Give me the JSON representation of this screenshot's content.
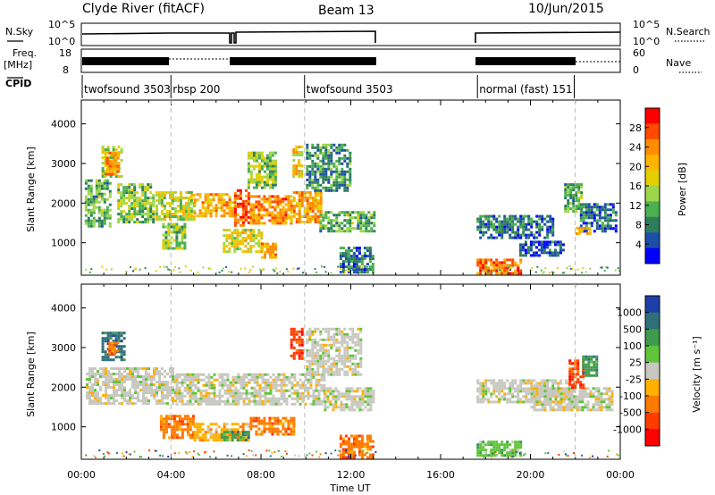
{
  "header": {
    "station": "Clyde River (fitACF)",
    "beam": "Beam 13",
    "date": "10/Jun/2015"
  },
  "strips": {
    "nsky_label": "N.Sky",
    "nsky_ticks": [
      "10^5",
      "10^0"
    ],
    "nsearch_label": "N.Search",
    "nsearch_ticks": [
      "10^5",
      "10^0"
    ],
    "freq_label_line1": "Freq.",
    "freq_label_line2": "[MHz]",
    "freq_ticks": [
      "18",
      "8"
    ],
    "nave_label": "Nave",
    "nave_ticks": [
      "60",
      "0"
    ],
    "cpid_label": "CPID"
  },
  "chart_data": [
    {
      "type": "heatmap",
      "name": "power-panel",
      "title": "",
      "xlabel": "",
      "ylabel": "Slant Range [km]",
      "xlim": [
        0,
        24
      ],
      "ylim": [
        180,
        4600
      ],
      "y_ticks": [
        "1000",
        "2000",
        "3000",
        "4000"
      ],
      "colorbar": {
        "label": "Power [dB]",
        "ticks": [
          "28",
          "24",
          "20",
          "16",
          "12",
          "8",
          "4"
        ],
        "colors": [
          "#ff0000",
          "#ff4a00",
          "#ff8c00",
          "#ffb400",
          "#e3cf00",
          "#9ed54a",
          "#4caf50",
          "#2e7d5b",
          "#1c4fa8",
          "#0000ff"
        ]
      },
      "patches": [
        {
          "t0": 0.15,
          "t1": 1.3,
          "r0": 1400,
          "r1": 2600,
          "level": 12
        },
        {
          "t0": 0.9,
          "t1": 1.8,
          "r0": 2650,
          "r1": 3450,
          "level": 16
        },
        {
          "t0": 1.1,
          "t1": 1.6,
          "r0": 2750,
          "r1": 3300,
          "level": 24
        },
        {
          "t0": 1.6,
          "t1": 3.2,
          "r0": 1550,
          "r1": 2500,
          "level": 14
        },
        {
          "t0": 3.3,
          "t1": 5.0,
          "r0": 1600,
          "r1": 2300,
          "level": 16
        },
        {
          "t0": 3.6,
          "t1": 4.6,
          "r0": 850,
          "r1": 1500,
          "level": 14
        },
        {
          "t0": 5.0,
          "t1": 6.8,
          "r0": 1650,
          "r1": 2250,
          "level": 22
        },
        {
          "t0": 6.8,
          "t1": 7.5,
          "r0": 1450,
          "r1": 2350,
          "level": 26
        },
        {
          "t0": 6.3,
          "t1": 8.0,
          "r0": 800,
          "r1": 1350,
          "level": 18
        },
        {
          "t0": 7.5,
          "t1": 9.3,
          "r0": 1500,
          "r1": 2200,
          "level": 24
        },
        {
          "t0": 7.4,
          "t1": 8.6,
          "r0": 2400,
          "r1": 3300,
          "level": 14
        },
        {
          "t0": 8.0,
          "t1": 8.6,
          "r0": 650,
          "r1": 1000,
          "level": 22
        },
        {
          "t0": 9.3,
          "t1": 10.7,
          "r0": 1550,
          "r1": 2300,
          "level": 22
        },
        {
          "t0": 9.4,
          "t1": 9.8,
          "r0": 2650,
          "r1": 3450,
          "level": 20
        },
        {
          "t0": 10.0,
          "t1": 12.0,
          "r0": 2300,
          "r1": 3500,
          "level": 10
        },
        {
          "t0": 10.6,
          "t1": 13.0,
          "r0": 1300,
          "r1": 1800,
          "level": 12
        },
        {
          "t0": 11.5,
          "t1": 13.0,
          "r0": 250,
          "r1": 900,
          "level": 8
        },
        {
          "t0": 17.6,
          "t1": 19.6,
          "r0": 250,
          "r1": 600,
          "level": 26
        },
        {
          "t0": 17.6,
          "t1": 21.0,
          "r0": 1100,
          "r1": 1700,
          "level": 8
        },
        {
          "t0": 19.5,
          "t1": 21.5,
          "r0": 700,
          "r1": 1050,
          "level": 6
        },
        {
          "t0": 21.5,
          "t1": 22.3,
          "r0": 1800,
          "r1": 2500,
          "level": 12
        },
        {
          "t0": 22.2,
          "t1": 23.8,
          "r0": 1300,
          "r1": 2000,
          "level": 8
        },
        {
          "t0": 22.0,
          "t1": 22.6,
          "r0": 1200,
          "r1": 1400,
          "level": 20
        }
      ]
    },
    {
      "type": "heatmap",
      "name": "velocity-panel",
      "title": "",
      "xlabel": "Time UT",
      "ylabel": "Slant Range [km]",
      "xlim": [
        0,
        24
      ],
      "ylim": [
        180,
        4600
      ],
      "x_ticks": [
        "00:00",
        "04:00",
        "08:00",
        "12:00",
        "16:00",
        "20:00",
        "00:00"
      ],
      "y_ticks": [
        "1000",
        "2000",
        "3000",
        "4000"
      ],
      "colorbar": {
        "label": "Velocity [m s⁻¹]",
        "ticks": [
          "1000",
          "500",
          "100",
          "25",
          "-25",
          "-100",
          "-500",
          "-1000"
        ],
        "colors": [
          "#1c3fa8",
          "#2f6f7a",
          "#3f9a4e",
          "#5fc43a",
          "#c8c8c0",
          "#ffb000",
          "#ff7a00",
          "#ff3c00",
          "#ff0000"
        ]
      },
      "patches": [
        {
          "t0": 0.2,
          "t1": 4.2,
          "r0": 1600,
          "r1": 2500,
          "cat": 4
        },
        {
          "t0": 4.2,
          "t1": 10.8,
          "r0": 1550,
          "r1": 2350,
          "cat": 4
        },
        {
          "t0": 10.8,
          "t1": 13.0,
          "r0": 1400,
          "r1": 2000,
          "cat": 4
        },
        {
          "t0": 0.9,
          "t1": 1.9,
          "r0": 2700,
          "r1": 3400,
          "cat": 1
        },
        {
          "t0": 1.2,
          "t1": 1.6,
          "r0": 2850,
          "r1": 3150,
          "cat": 6
        },
        {
          "t0": 3.5,
          "t1": 5.0,
          "r0": 700,
          "r1": 1300,
          "cat": 6
        },
        {
          "t0": 5.0,
          "t1": 7.5,
          "r0": 650,
          "r1": 1100,
          "cat": 5
        },
        {
          "t0": 6.2,
          "t1": 7.5,
          "r0": 650,
          "r1": 900,
          "cat": 2
        },
        {
          "t0": 7.5,
          "t1": 9.5,
          "r0": 800,
          "r1": 1250,
          "cat": 6
        },
        {
          "t0": 9.3,
          "t1": 9.8,
          "r0": 2700,
          "r1": 3500,
          "cat": 7
        },
        {
          "t0": 10.0,
          "t1": 12.5,
          "r0": 2300,
          "r1": 3500,
          "cat": 4
        },
        {
          "t0": 11.5,
          "t1": 13.0,
          "r0": 250,
          "r1": 800,
          "cat": 6
        },
        {
          "t0": 17.6,
          "t1": 19.6,
          "r0": 250,
          "r1": 650,
          "cat": 3
        },
        {
          "t0": 17.6,
          "t1": 22.0,
          "r0": 1600,
          "r1": 2200,
          "cat": 4
        },
        {
          "t0": 20.0,
          "t1": 23.6,
          "r0": 1450,
          "r1": 2000,
          "cat": 4
        },
        {
          "t0": 21.7,
          "t1": 22.4,
          "r0": 2000,
          "r1": 2700,
          "cat": 7
        },
        {
          "t0": 22.3,
          "t1": 23.0,
          "r0": 2300,
          "r1": 2800,
          "cat": 2
        }
      ]
    }
  ],
  "cpid_bands": [
    {
      "label": "twofsound 3503",
      "start": 0.0
    },
    {
      "label": "rbsp 200",
      "start": 3.95
    },
    {
      "label": "twofsound 3503",
      "start": 9.9
    },
    {
      "label": "normal (fast) 151",
      "start": 17.6
    }
  ],
  "data_gap": {
    "start": 13.1,
    "end": 17.6
  },
  "time_axis_title": "Time UT"
}
